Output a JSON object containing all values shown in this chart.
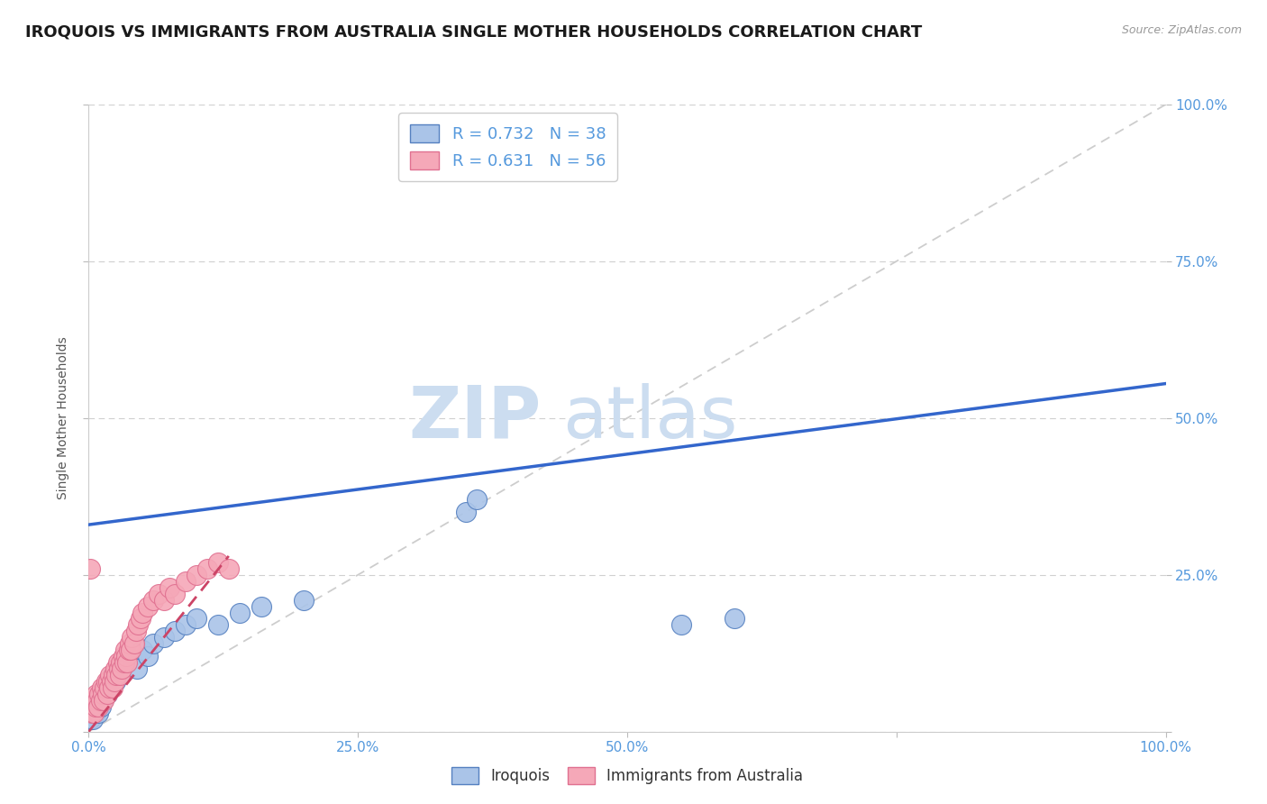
{
  "title": "IROQUOIS VS IMMIGRANTS FROM AUSTRALIA SINGLE MOTHER HOUSEHOLDS CORRELATION CHART",
  "source": "Source: ZipAtlas.com",
  "ylabel": "Single Mother Households",
  "watermark_zip": "ZIP",
  "watermark_atlas": "atlas",
  "legend_iroquois_label": "Iroquois",
  "legend_immigrants_label": "Immigrants from Australia",
  "iroquois_R": 0.732,
  "iroquois_N": 38,
  "immigrants_R": 0.631,
  "immigrants_N": 56,
  "iroquois_color": "#aac4e8",
  "immigrants_color": "#f5a8b8",
  "iroquois_edge_color": "#5580c0",
  "immigrants_edge_color": "#e07090",
  "iroquois_line_color": "#3366cc",
  "immigrants_line_color": "#cc4466",
  "ref_line_color": "#c8c8c8",
  "background_color": "#ffffff",
  "iroquois_points": [
    [
      0.001,
      0.02
    ],
    [
      0.003,
      0.03
    ],
    [
      0.004,
      0.02
    ],
    [
      0.005,
      0.04
    ],
    [
      0.006,
      0.03
    ],
    [
      0.007,
      0.05
    ],
    [
      0.008,
      0.04
    ],
    [
      0.009,
      0.03
    ],
    [
      0.01,
      0.05
    ],
    [
      0.011,
      0.04
    ],
    [
      0.012,
      0.06
    ],
    [
      0.013,
      0.05
    ],
    [
      0.015,
      0.07
    ],
    [
      0.017,
      0.06
    ],
    [
      0.018,
      0.08
    ],
    [
      0.02,
      0.07
    ],
    [
      0.022,
      0.09
    ],
    [
      0.025,
      0.08
    ],
    [
      0.028,
      0.1
    ],
    [
      0.03,
      0.09
    ],
    [
      0.035,
      0.11
    ],
    [
      0.04,
      0.12
    ],
    [
      0.045,
      0.1
    ],
    [
      0.05,
      0.13
    ],
    [
      0.055,
      0.12
    ],
    [
      0.06,
      0.14
    ],
    [
      0.07,
      0.15
    ],
    [
      0.08,
      0.16
    ],
    [
      0.09,
      0.17
    ],
    [
      0.1,
      0.18
    ],
    [
      0.12,
      0.17
    ],
    [
      0.14,
      0.19
    ],
    [
      0.16,
      0.2
    ],
    [
      0.2,
      0.21
    ],
    [
      0.35,
      0.35
    ],
    [
      0.36,
      0.37
    ],
    [
      0.55,
      0.17
    ],
    [
      0.6,
      0.18
    ]
  ],
  "immigrants_points": [
    [
      0.001,
      0.26
    ],
    [
      0.002,
      0.04
    ],
    [
      0.003,
      0.03
    ],
    [
      0.004,
      0.05
    ],
    [
      0.005,
      0.03
    ],
    [
      0.006,
      0.04
    ],
    [
      0.007,
      0.06
    ],
    [
      0.008,
      0.05
    ],
    [
      0.009,
      0.04
    ],
    [
      0.01,
      0.06
    ],
    [
      0.011,
      0.05
    ],
    [
      0.012,
      0.07
    ],
    [
      0.013,
      0.06
    ],
    [
      0.014,
      0.05
    ],
    [
      0.015,
      0.07
    ],
    [
      0.016,
      0.08
    ],
    [
      0.017,
      0.06
    ],
    [
      0.018,
      0.08
    ],
    [
      0.019,
      0.07
    ],
    [
      0.02,
      0.09
    ],
    [
      0.021,
      0.08
    ],
    [
      0.022,
      0.07
    ],
    [
      0.023,
      0.09
    ],
    [
      0.024,
      0.08
    ],
    [
      0.025,
      0.1
    ],
    [
      0.026,
      0.09
    ],
    [
      0.027,
      0.11
    ],
    [
      0.028,
      0.1
    ],
    [
      0.029,
      0.09
    ],
    [
      0.03,
      0.11
    ],
    [
      0.031,
      0.1
    ],
    [
      0.032,
      0.12
    ],
    [
      0.033,
      0.11
    ],
    [
      0.034,
      0.13
    ],
    [
      0.035,
      0.12
    ],
    [
      0.036,
      0.11
    ],
    [
      0.037,
      0.13
    ],
    [
      0.038,
      0.14
    ],
    [
      0.039,
      0.13
    ],
    [
      0.04,
      0.15
    ],
    [
      0.042,
      0.14
    ],
    [
      0.044,
      0.16
    ],
    [
      0.046,
      0.17
    ],
    [
      0.048,
      0.18
    ],
    [
      0.05,
      0.19
    ],
    [
      0.055,
      0.2
    ],
    [
      0.06,
      0.21
    ],
    [
      0.065,
      0.22
    ],
    [
      0.07,
      0.21
    ],
    [
      0.075,
      0.23
    ],
    [
      0.08,
      0.22
    ],
    [
      0.09,
      0.24
    ],
    [
      0.1,
      0.25
    ],
    [
      0.11,
      0.26
    ],
    [
      0.12,
      0.27
    ],
    [
      0.13,
      0.26
    ]
  ],
  "iroquois_reg_line": [
    [
      0.0,
      0.33
    ],
    [
      1.0,
      0.555
    ]
  ],
  "immigrants_reg_line": [
    [
      0.0,
      0.0
    ],
    [
      0.13,
      0.28
    ]
  ],
  "xlim": [
    0,
    1.0
  ],
  "ylim": [
    0,
    1.0
  ],
  "xticks": [
    0.0,
    0.25,
    0.5,
    0.75,
    1.0
  ],
  "yticks": [
    0.0,
    0.25,
    0.5,
    0.75,
    1.0
  ],
  "xticklabels": [
    "0.0%",
    "25.0%",
    "50.0%",
    "",
    "100.0%"
  ],
  "yticklabels_right": [
    "",
    "25.0%",
    "50.0%",
    "75.0%",
    "100.0%"
  ],
  "grid_color": "#d0d0d0",
  "title_fontsize": 13,
  "axis_label_fontsize": 10,
  "tick_fontsize": 11,
  "tick_color": "#5599dd"
}
